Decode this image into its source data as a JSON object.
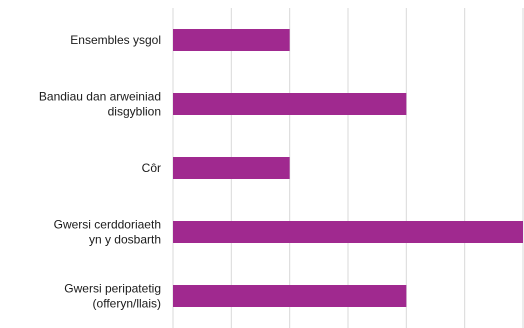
{
  "chart_data": {
    "type": "bar",
    "orientation": "horizontal",
    "title": "",
    "xlabel": "",
    "ylabel": "",
    "categories": [
      [
        "Ensembles ysgol"
      ],
      [
        "Bandiau dan arweiniad",
        "disgyblion"
      ],
      [
        "Côr"
      ],
      [
        "Gwersi cerddoriaeth",
        "yn y dosbarth"
      ],
      [
        "Gwersi peripatetig",
        "(offeryn/llais)"
      ]
    ],
    "values": [
      1,
      2,
      1,
      3,
      2
    ],
    "xlim": [
      0,
      3
    ],
    "grid": true,
    "tick_labels_shown": false,
    "bar_color": "#a0298f",
    "grid_color": "#d9d9d9"
  }
}
